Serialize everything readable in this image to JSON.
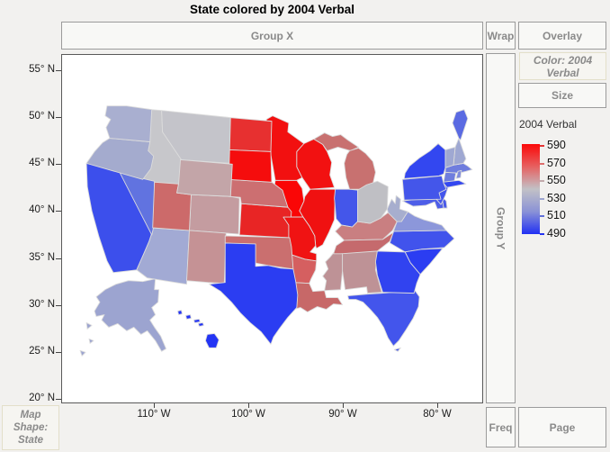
{
  "title": "State colored by 2004 Verbal",
  "drop_zones": {
    "group_x": "Group X",
    "wrap": "Wrap",
    "overlay": "Overlay",
    "color": "Color: 2004 Verbal",
    "size": "Size",
    "group_y": "Group Y",
    "freq": "Freq",
    "page": "Page",
    "map_shape_lines": [
      "Map",
      "Shape:",
      "State"
    ]
  },
  "legend": {
    "title": "2004 Verbal",
    "ticks": [
      {
        "label": "590",
        "color": "#e43434"
      },
      {
        "label": "570",
        "color": "#dd6e6d"
      },
      {
        "label": "550",
        "color": "#c2a9ab"
      },
      {
        "label": "530",
        "color": "#9ba3ce"
      },
      {
        "label": "510",
        "color": "#5f6fd8"
      },
      {
        "label": "490",
        "color": "#2433f0"
      }
    ],
    "gradient": [
      "#fb0909",
      "#e66060",
      "#c2c1c6",
      "#8a92d6",
      "#2130f3"
    ]
  },
  "axes": {
    "y_ticks": [
      "55° N",
      "50° N",
      "45° N",
      "40° N",
      "35° N",
      "30° N",
      "25° N",
      "20° N"
    ],
    "x_ticks": [
      "110° W",
      "100° W",
      "90° W",
      "80° W"
    ]
  },
  "map": {
    "states": [
      {
        "id": "AL",
        "name": "Alabama",
        "color": "#BE9296"
      },
      {
        "id": "AK",
        "name": "Alaska",
        "color": "#9CA4D0"
      },
      {
        "id": "AZ",
        "name": "Arizona",
        "color": "#A2AAD4"
      },
      {
        "id": "AR",
        "name": "Arkansas",
        "color": "#D55F60"
      },
      {
        "id": "CA",
        "name": "California",
        "color": "#3C4FEC"
      },
      {
        "id": "CO",
        "name": "Colorado",
        "color": "#C49CA0"
      },
      {
        "id": "CT",
        "name": "Connecticut",
        "color": "#6F7DDE"
      },
      {
        "id": "DE",
        "name": "Delaware",
        "color": "#4A5AE8"
      },
      {
        "id": "FL",
        "name": "Florida",
        "color": "#4355EC"
      },
      {
        "id": "GA",
        "name": "Georgia",
        "color": "#3143F0"
      },
      {
        "id": "HI",
        "name": "Hawaii",
        "color": "#2334F4"
      },
      {
        "id": "ID",
        "name": "Idaho",
        "color": "#C7C7CB"
      },
      {
        "id": "IL",
        "name": "Illinois",
        "color": "#F01111"
      },
      {
        "id": "IN",
        "name": "Indiana",
        "color": "#4456EA"
      },
      {
        "id": "IA",
        "name": "Iowa",
        "color": "#FA0606"
      },
      {
        "id": "KS",
        "name": "Kansas",
        "color": "#E82525"
      },
      {
        "id": "KY",
        "name": "Kentucky",
        "color": "#C97F81"
      },
      {
        "id": "LA",
        "name": "Louisiana",
        "color": "#C76868"
      },
      {
        "id": "ME",
        "name": "Maine",
        "color": "#5A6AE2"
      },
      {
        "id": "MD",
        "name": "Maryland",
        "color": "#4E5EE8"
      },
      {
        "id": "MA",
        "name": "Massachusetts",
        "color": "#6F7DDE"
      },
      {
        "id": "MI",
        "name": "Michigan",
        "color": "#C87170"
      },
      {
        "id": "MN",
        "name": "Minnesota",
        "color": "#F21010"
      },
      {
        "id": "MS",
        "name": "Mississippi",
        "color": "#BE9296"
      },
      {
        "id": "MO",
        "name": "Missouri",
        "color": "#F01313"
      },
      {
        "id": "MT",
        "name": "Montana",
        "color": "#C4C4CA"
      },
      {
        "id": "NE",
        "name": "Nebraska",
        "color": "#CC6F71"
      },
      {
        "id": "NV",
        "name": "Nevada",
        "color": "#6173E0"
      },
      {
        "id": "NH",
        "name": "New Hampshire",
        "color": "#9FA8D2"
      },
      {
        "id": "NJ",
        "name": "New Jersey",
        "color": "#4355EC"
      },
      {
        "id": "NM",
        "name": "New Mexico",
        "color": "#C59295"
      },
      {
        "id": "NY",
        "name": "New York",
        "color": "#3347F0"
      },
      {
        "id": "NC",
        "name": "North Carolina",
        "color": "#4153EC"
      },
      {
        "id": "ND",
        "name": "North Dakota",
        "color": "#E73030"
      },
      {
        "id": "OH",
        "name": "Ohio",
        "color": "#BFBFC4"
      },
      {
        "id": "OK",
        "name": "Oklahoma",
        "color": "#CA6F6F"
      },
      {
        "id": "OR",
        "name": "Oregon",
        "color": "#A4ABCE"
      },
      {
        "id": "PA",
        "name": "Pennsylvania",
        "color": "#4456EA"
      },
      {
        "id": "RI",
        "name": "Rhode Island",
        "color": "#7F8BDC"
      },
      {
        "id": "SC",
        "name": "South Carolina",
        "color": "#2B3DF2"
      },
      {
        "id": "SD",
        "name": "South Dakota",
        "color": "#F50D0D"
      },
      {
        "id": "TN",
        "name": "Tennessee",
        "color": "#C56A6D"
      },
      {
        "id": "TX",
        "name": "Texas",
        "color": "#2B3DF2"
      },
      {
        "id": "UT",
        "name": "Utah",
        "color": "#CC6A6A"
      },
      {
        "id": "VT",
        "name": "Vermont",
        "color": "#9FA8D2"
      },
      {
        "id": "VA",
        "name": "Virginia",
        "color": "#8C97DA"
      },
      {
        "id": "WA",
        "name": "Washington",
        "color": "#A9AFD0"
      },
      {
        "id": "WV",
        "name": "West Virginia",
        "color": "#A7AECE"
      },
      {
        "id": "WI",
        "name": "Wisconsin",
        "color": "#F21111"
      },
      {
        "id": "WY",
        "name": "Wyoming",
        "color": "#C3A5A8"
      }
    ]
  }
}
